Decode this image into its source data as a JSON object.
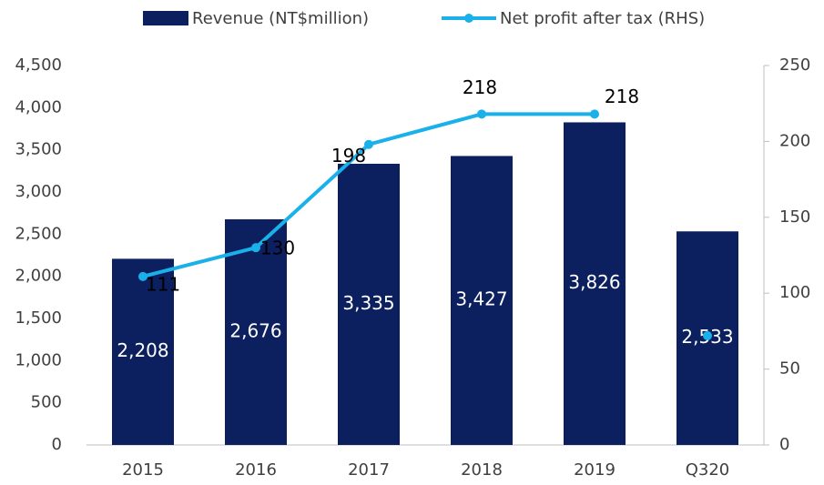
{
  "chart_data": {
    "type": "bar_line",
    "categories": [
      "2015",
      "2016",
      "2017",
      "2018",
      "2019",
      "Q320"
    ],
    "series": [
      {
        "name": "Revenue (NT$million)",
        "type": "bar",
        "color": "#0c1f5e",
        "axis": "y",
        "values": [
          2208,
          2676,
          3335,
          3427,
          3826,
          2533
        ],
        "value_labels": [
          "2,208",
          "2,676",
          "3,335",
          "3,427",
          "3,826",
          "2,533"
        ]
      },
      {
        "name": "Net profit after tax (RHS)",
        "type": "line",
        "color": "#1ab0ea",
        "axis": "y2",
        "values": [
          111,
          130,
          198,
          218,
          218,
          null
        ]
      },
      {
        "type": "line",
        "color": "#1ab0ea",
        "axis": "y2",
        "values": [
          null,
          null,
          null,
          null,
          null,
          72
        ]
      }
    ],
    "ylim": [
      0,
      4500
    ],
    "yticks": [
      0,
      {
        "value": 500,
        "label": "500"
      },
      {
        "value": 1000,
        "label": "1,000"
      },
      {
        "value": 1500,
        "label": "1,500"
      },
      {
        "value": 2000,
        "label": "2,000"
      },
      {
        "value": 2500,
        "label": "2,500"
      },
      {
        "value": 3000,
        "label": "3,000"
      },
      {
        "value": 3500,
        "label": "3,500"
      },
      {
        "value": 4000,
        "label": "4,000"
      },
      {
        "value": 4500,
        "label": "4,500"
      }
    ],
    "y2lim": [
      0,
      250
    ],
    "y2ticks": [
      0,
      50,
      100,
      150,
      200,
      250
    ],
    "legend": "top"
  }
}
